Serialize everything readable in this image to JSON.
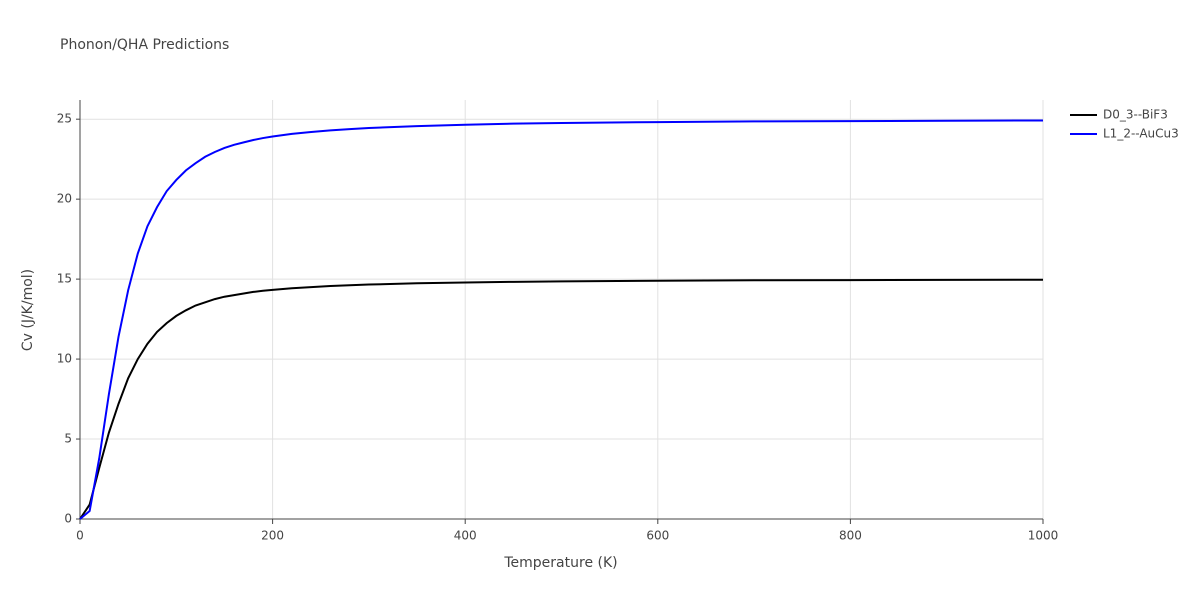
{
  "chart_data": {
    "type": "line",
    "title": "Phonon/QHA Predictions",
    "xlabel": "Temperature (K)",
    "ylabel": "Cv (J/K/mol)",
    "x": [
      0,
      10,
      20,
      30,
      40,
      50,
      60,
      70,
      80,
      90,
      100,
      110,
      120,
      130,
      140,
      150,
      160,
      170,
      180,
      190,
      200,
      220,
      240,
      260,
      280,
      300,
      350,
      400,
      450,
      500,
      600,
      700,
      800,
      900,
      1000
    ],
    "series": [
      {
        "name": "D0_3--BiF3",
        "color": "#000000",
        "values": [
          0,
          0.9,
          3.2,
          5.4,
          7.2,
          8.8,
          10.0,
          10.95,
          11.7,
          12.25,
          12.7,
          13.05,
          13.35,
          13.55,
          13.75,
          13.9,
          14.0,
          14.1,
          14.2,
          14.27,
          14.33,
          14.43,
          14.5,
          14.57,
          14.62,
          14.66,
          14.74,
          14.79,
          14.83,
          14.86,
          14.9,
          14.93,
          14.94,
          14.95,
          14.96
        ]
      },
      {
        "name": "L1_2--AuCu3",
        "color": "#0000ff",
        "values": [
          0,
          0.5,
          3.8,
          7.8,
          11.4,
          14.3,
          16.6,
          18.3,
          19.5,
          20.5,
          21.2,
          21.8,
          22.25,
          22.65,
          22.95,
          23.2,
          23.4,
          23.55,
          23.7,
          23.82,
          23.92,
          24.08,
          24.2,
          24.3,
          24.38,
          24.45,
          24.57,
          24.65,
          24.72,
          24.76,
          24.82,
          24.86,
          24.88,
          24.9,
          24.92
        ]
      }
    ],
    "xlim": [
      0,
      1000
    ],
    "xticks": [
      0,
      200,
      400,
      600,
      800,
      1000
    ],
    "ylim": [
      0,
      26.2
    ],
    "yticks": [
      0,
      5,
      10,
      15,
      20,
      25
    ],
    "grid": true,
    "legend": "right"
  }
}
